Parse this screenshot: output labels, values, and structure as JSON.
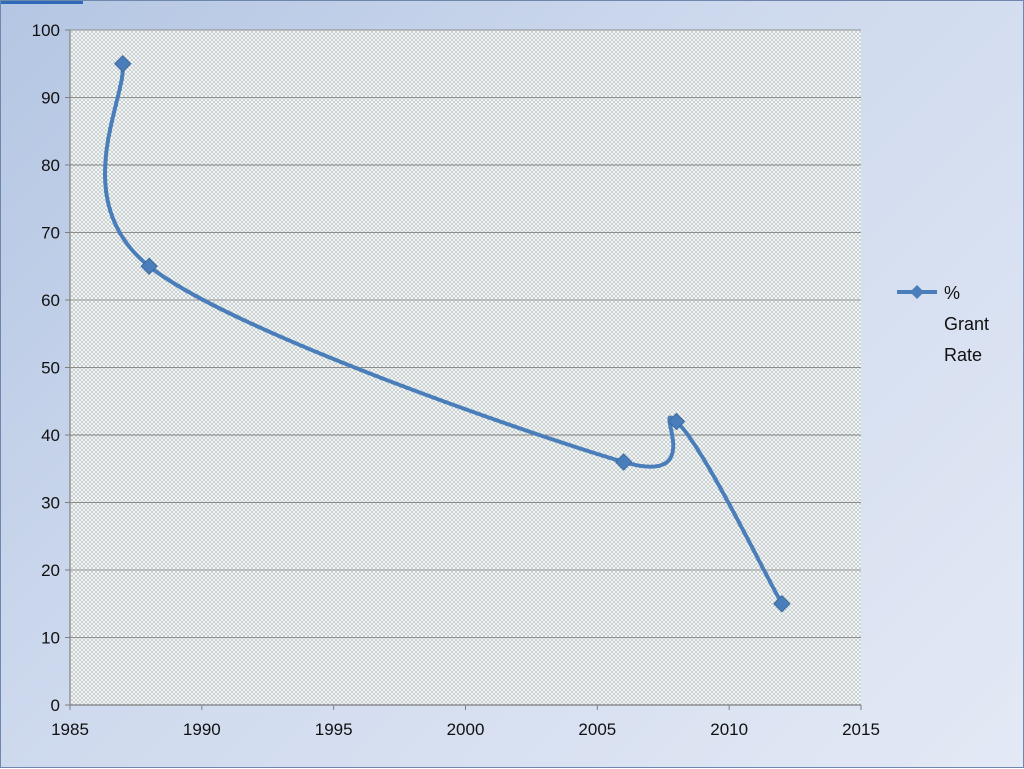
{
  "chart_data": {
    "type": "line",
    "smooth": true,
    "series": [
      {
        "name": "% Grant Rate",
        "color": "#4a7ebb",
        "marker": "diamond",
        "points": [
          {
            "x": 1987,
            "y": 95
          },
          {
            "x": 1988,
            "y": 65
          },
          {
            "x": 2006,
            "y": 36
          },
          {
            "x": 2008,
            "y": 42
          },
          {
            "x": 2012,
            "y": 15
          }
        ]
      }
    ],
    "xlim": [
      1985,
      2015
    ],
    "ylim": [
      0,
      100
    ],
    "xticks": [
      1985,
      1990,
      1995,
      2000,
      2005,
      2010,
      2015
    ],
    "yticks": [
      0,
      10,
      20,
      30,
      40,
      50,
      60,
      70,
      80,
      90,
      100
    ],
    "grid": "horizontal",
    "legend": {
      "placement": "right",
      "lines": [
        "%",
        "Grant",
        "Rate"
      ]
    },
    "plot_background": "dotted"
  }
}
